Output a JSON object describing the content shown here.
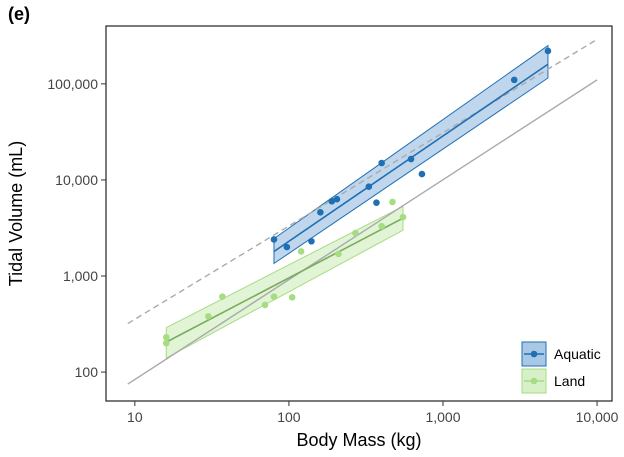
{
  "panel_label": "(e)",
  "colors": {
    "aquatic_line": "#1f6fb4",
    "aquatic_fill": "#a9c8e6",
    "land_line": "#a6dc82",
    "land_fill": "#d8f0c8",
    "land_line_dark": "#7aab5e",
    "reference_solid": "#aaaaaa",
    "reference_dashed": "#aaaaaa"
  },
  "chart_data": {
    "type": "scatter",
    "xlabel": "Body Mass (kg)",
    "ylabel": "Tidal Volume (mL)",
    "x_scale": "log",
    "y_scale": "log",
    "xlim": [
      6.5,
      12500
    ],
    "ylim": [
      50,
      400000
    ],
    "x_ticks": [
      {
        "value": 10,
        "label": "10"
      },
      {
        "value": 100,
        "label": "100"
      },
      {
        "value": 1000,
        "label": "1,000"
      },
      {
        "value": 10000,
        "label": "10,000"
      }
    ],
    "y_ticks": [
      {
        "value": 100,
        "label": "100"
      },
      {
        "value": 1000,
        "label": "1,000"
      },
      {
        "value": 10000,
        "label": "10,000"
      },
      {
        "value": 100000,
        "label": "100,000"
      }
    ],
    "grid": false,
    "legend_position": "bottom-right",
    "series": [
      {
        "name": "Aquatic",
        "color": "#1f6fb4",
        "points": [
          {
            "x": 80,
            "y": 2400
          },
          {
            "x": 97,
            "y": 2000
          },
          {
            "x": 140,
            "y": 2300
          },
          {
            "x": 160,
            "y": 4600
          },
          {
            "x": 190,
            "y": 6000
          },
          {
            "x": 205,
            "y": 6300
          },
          {
            "x": 330,
            "y": 8500
          },
          {
            "x": 370,
            "y": 5800
          },
          {
            "x": 400,
            "y": 15000
          },
          {
            "x": 620,
            "y": 16500
          },
          {
            "x": 730,
            "y": 11500
          },
          {
            "x": 2900,
            "y": 110000
          },
          {
            "x": 4800,
            "y": 220000
          }
        ],
        "fit": {
          "x": [
            80,
            4800
          ],
          "y": [
            1800,
            160000
          ],
          "ci_lower": [
            1350,
            115000
          ],
          "ci_upper": [
            2450,
            250000
          ]
        }
      },
      {
        "name": "Land",
        "color": "#a6dc82",
        "points": [
          {
            "x": 16,
            "y": 200
          },
          {
            "x": 16,
            "y": 230
          },
          {
            "x": 30,
            "y": 380
          },
          {
            "x": 37,
            "y": 610
          },
          {
            "x": 70,
            "y": 500
          },
          {
            "x": 80,
            "y": 610
          },
          {
            "x": 105,
            "y": 600
          },
          {
            "x": 120,
            "y": 1800
          },
          {
            "x": 210,
            "y": 1700
          },
          {
            "x": 270,
            "y": 2800
          },
          {
            "x": 400,
            "y": 3300
          },
          {
            "x": 470,
            "y": 5900
          },
          {
            "x": 550,
            "y": 4100
          }
        ],
        "fit": {
          "x": [
            16,
            550
          ],
          "y": [
            205,
            4000
          ],
          "ci_lower": [
            140,
            3000
          ],
          "ci_upper": [
            290,
            5300
          ]
        }
      }
    ],
    "reference_lines": [
      {
        "style": "solid",
        "x": [
          9,
          10000
        ],
        "y": [
          75,
          110000
        ]
      },
      {
        "style": "dashed",
        "x": [
          9,
          10000
        ],
        "y": [
          320,
          290000
        ]
      }
    ]
  }
}
